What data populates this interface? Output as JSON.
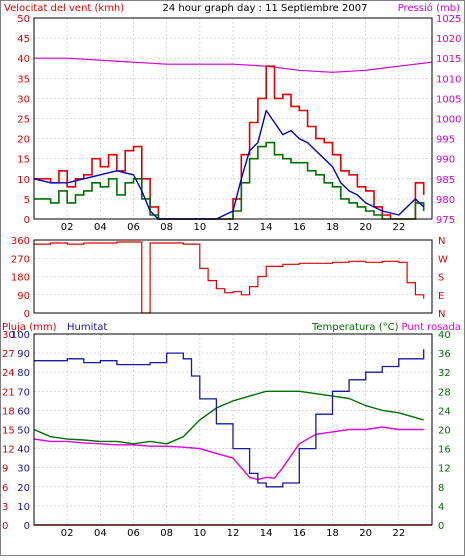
{
  "title": "24 hour graph day : 11 Septiembre 2007",
  "colors": {
    "frame": "#000000",
    "grid": "#c0c0c0",
    "wind": "#e00000",
    "avg": "#0000c0",
    "humid": "#1818a0",
    "temp": "#007000",
    "dew": "#e000e0",
    "press": "#d000d0",
    "rain": "#d00000"
  },
  "x_ticks": [
    "02",
    "04",
    "06",
    "08",
    "10",
    "12",
    "14",
    "16",
    "18",
    "20",
    "22"
  ],
  "chart_data": [
    {
      "type": "line",
      "name": "wind-pressure",
      "left_label": "Velocitat del vent (kmh)",
      "right_label": "Pressió (mb)",
      "left_ticks": [
        "0",
        "5",
        "10",
        "15",
        "20",
        "25",
        "30",
        "35",
        "40",
        "45",
        "50"
      ],
      "right_ticks": [
        "975",
        "980",
        "985",
        "990",
        "995",
        "1000",
        "1005",
        "1010",
        "1015",
        "1020",
        "1025"
      ],
      "ylim_left": [
        0,
        50
      ],
      "ylim_right": [
        975,
        1025
      ],
      "xlim": [
        0,
        24
      ],
      "grid": true,
      "series": [
        {
          "role": "gust",
          "axis": "left",
          "x": [
            0,
            1,
            1.5,
            2,
            2.5,
            3,
            3.5,
            4,
            4.5,
            5,
            5.5,
            6,
            6.5,
            7,
            7.5,
            8,
            9,
            10,
            11,
            12,
            12.5,
            13,
            13.5,
            14,
            14.5,
            15,
            15.5,
            16,
            16.5,
            17,
            17.5,
            18,
            18.5,
            19,
            19.5,
            20,
            20.5,
            21,
            21.5,
            22,
            22.5,
            23,
            23.5
          ],
          "values": [
            10,
            9,
            12,
            8,
            10,
            11,
            15,
            13,
            16,
            12,
            17,
            18,
            10,
            3,
            0,
            0,
            0,
            0,
            0,
            5,
            16,
            24,
            30,
            38,
            30,
            31,
            28,
            27,
            23,
            20,
            19,
            16,
            12,
            11,
            8,
            7,
            3,
            1,
            0,
            0,
            0,
            9,
            6
          ]
        },
        {
          "role": "wind",
          "axis": "left",
          "x": [
            0,
            1,
            1.5,
            2,
            2.5,
            3,
            3.5,
            4,
            4.5,
            5,
            5.5,
            6,
            6.5,
            7,
            7.5,
            8,
            9,
            10,
            11,
            12,
            12.5,
            13,
            13.5,
            14,
            14.5,
            15,
            15.5,
            16,
            16.5,
            17,
            17.5,
            18,
            18.5,
            19,
            19.5,
            20,
            20.5,
            21,
            21.5,
            22,
            22.5,
            23,
            23.5
          ],
          "values": [
            5,
            4,
            7,
            4,
            6,
            7,
            9,
            8,
            10,
            6,
            9,
            10,
            5,
            1,
            0,
            0,
            0,
            0,
            0,
            2,
            9,
            15,
            18,
            19,
            16,
            15,
            14,
            14,
            12,
            11,
            9,
            8,
            5,
            4,
            3,
            2,
            1,
            0,
            0,
            0,
            0,
            4,
            2
          ]
        },
        {
          "role": "average",
          "axis": "left",
          "x": [
            0,
            1,
            2,
            3,
            4,
            5,
            6,
            6.5,
            7,
            7.5,
            8,
            9,
            10,
            11,
            12,
            12.5,
            13,
            13.5,
            14,
            14.5,
            15,
            15.5,
            16,
            16.5,
            17,
            17.5,
            18,
            18.5,
            19,
            19.5,
            20,
            20.5,
            21,
            22,
            23,
            23.5
          ],
          "values": [
            10,
            9,
            9,
            10,
            11,
            12,
            11,
            7,
            2,
            0,
            0,
            0,
            0,
            0,
            2,
            10,
            17,
            19,
            27,
            24,
            21,
            22,
            20,
            19,
            17,
            15,
            13,
            9,
            7,
            6,
            4,
            3,
            2,
            1,
            5,
            3
          ]
        },
        {
          "role": "pressure",
          "axis": "right",
          "x": [
            0,
            2,
            4,
            6,
            8,
            10,
            12,
            14,
            16,
            18,
            20,
            22,
            24
          ],
          "values": [
            1015,
            1015,
            1014.5,
            1014,
            1013.5,
            1013.5,
            1013.5,
            1013,
            1012,
            1011.5,
            1012,
            1013,
            1014
          ]
        }
      ]
    },
    {
      "type": "scatter",
      "name": "wind-direction",
      "left_ticks": [
        "0",
        "90",
        "180",
        "270",
        "360"
      ],
      "right_ticks": [
        "N",
        "E",
        "S",
        "W",
        "N"
      ],
      "ylim": [
        0,
        360
      ],
      "xlim": [
        0,
        24
      ],
      "series": [
        {
          "role": "direction",
          "x": [
            0,
            1,
            2,
            3,
            4,
            5,
            6,
            6.5,
            7,
            7.5,
            8,
            9,
            10,
            10.5,
            11,
            11.5,
            12,
            12.5,
            13,
            13.5,
            14,
            15,
            16,
            17,
            18,
            19,
            20,
            21,
            22,
            22.5,
            23,
            23.5
          ],
          "values": [
            340,
            345,
            340,
            345,
            345,
            350,
            350,
            0,
            345,
            345,
            345,
            340,
            220,
            160,
            120,
            100,
            105,
            90,
            130,
            180,
            230,
            240,
            245,
            245,
            250,
            255,
            250,
            255,
            250,
            150,
            90,
            70
          ]
        }
      ]
    },
    {
      "type": "line",
      "name": "rain-humidity-temperature",
      "labels": {
        "rain": "Pluja (mm)",
        "humidity": "Humitat",
        "temperature": "Temperatura (°C)",
        "dewpoint": "Punt rosada"
      },
      "rain_ticks": [
        "0",
        "3",
        "6",
        "9",
        "12",
        "15",
        "18",
        "21",
        "24",
        "27",
        "30"
      ],
      "humidity_ticks": [
        "0",
        "10",
        "20",
        "30",
        "40",
        "50",
        "60",
        "70",
        "80",
        "90",
        "100"
      ],
      "temp_ticks": [
        "0",
        "4",
        "8",
        "12",
        "16",
        "20",
        "24",
        "28",
        "32",
        "36",
        "40"
      ],
      "ylim_humidity": [
        0,
        100
      ],
      "ylim_temp": [
        0,
        40
      ],
      "xlim": [
        0,
        24
      ],
      "grid": true,
      "series": [
        {
          "role": "humidity",
          "axis": "humidity",
          "x": [
            0,
            1,
            2,
            3,
            4,
            5,
            6,
            7,
            8,
            9,
            9.5,
            10,
            11,
            12,
            13,
            13.5,
            14,
            15,
            16,
            17,
            18,
            19,
            20,
            21,
            22,
            23,
            23.5
          ],
          "values": [
            86,
            86,
            87,
            85,
            86,
            84,
            84,
            85,
            90,
            87,
            78,
            66,
            53,
            40,
            27,
            22,
            20,
            22,
            40,
            58,
            70,
            76,
            80,
            83,
            87,
            87,
            92
          ]
        },
        {
          "role": "temperature",
          "axis": "temp",
          "x": [
            0,
            1,
            2,
            3,
            4,
            5,
            6,
            7,
            8,
            9,
            10,
            11,
            12,
            13,
            14,
            15,
            16,
            17,
            18,
            19,
            20,
            21,
            22,
            23,
            23.5
          ],
          "values": [
            20,
            18.5,
            18,
            17.8,
            17.5,
            17.5,
            17,
            17.5,
            17,
            18.5,
            22,
            24.5,
            26,
            27,
            28,
            28,
            28,
            27.5,
            27,
            26.5,
            25,
            24,
            23.5,
            22.5,
            22
          ]
        },
        {
          "role": "dewpoint",
          "axis": "temp",
          "x": [
            0,
            1,
            2,
            3,
            4,
            5,
            6,
            7,
            8,
            9,
            10,
            11,
            12,
            12.5,
            13,
            13.5,
            14,
            14.5,
            15,
            16,
            17,
            18,
            19,
            20,
            21,
            22,
            23,
            23.5
          ],
          "values": [
            18,
            17.5,
            17.5,
            17.2,
            17,
            16.8,
            16.8,
            16.5,
            16.5,
            16.3,
            16,
            15,
            14,
            12,
            10,
            9.5,
            10,
            9.8,
            12,
            17,
            19,
            19.5,
            20,
            20,
            20.5,
            20,
            20,
            20
          ]
        },
        {
          "role": "rain",
          "axis": "humidity",
          "x": [
            0,
            24
          ],
          "values": [
            0,
            0
          ]
        }
      ]
    }
  ]
}
